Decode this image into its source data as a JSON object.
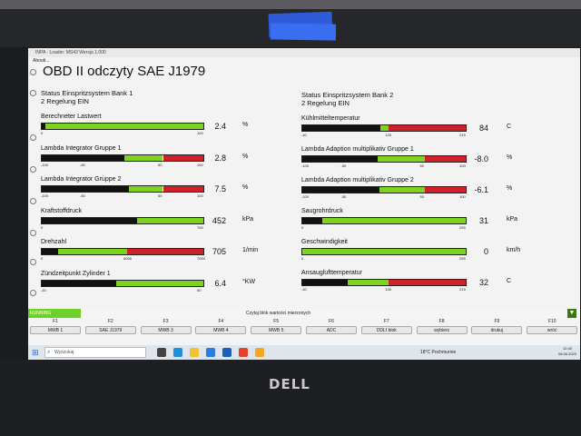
{
  "window": {
    "title": "INPA - Loader: MS43 Wersja 1.000",
    "menu": "Abouti..."
  },
  "app_title": "OBD II odczyty SAE J1979",
  "bank1": {
    "line1": "Status Einspritzsystem Bank 1",
    "line2": "2 Regelung EIN"
  },
  "bank2": {
    "line1": "Status Einspritzsystem Bank 2",
    "line2": "2 Regelung EIN"
  },
  "left_gauges": [
    {
      "label": "Berechneter Lastwert",
      "value": "2.4",
      "unit": "%",
      "ticks": [
        "0",
        "100"
      ],
      "fill": 0.02
    },
    {
      "label": "Lambda Integrator Gruppe 1",
      "value": "2.8",
      "unit": "%",
      "ticks": [
        "-100",
        "-50",
        "50",
        "100"
      ],
      "fill": 0.51
    },
    {
      "label": "Lambda Integrator Gruppe 2",
      "value": "7.5",
      "unit": "%",
      "ticks": [
        "-100",
        "-50",
        "50",
        "100"
      ],
      "fill": 0.54
    },
    {
      "label": "Kraftstoffdruck",
      "value": "452",
      "unit": "kPa",
      "ticks": [
        "0",
        "765"
      ],
      "fill": 0.59
    },
    {
      "label": "Drehzahl",
      "value": "705",
      "unit": "1/min",
      "ticks": [
        "0",
        "6000",
        "7000"
      ],
      "fill": 0.1
    },
    {
      "label": "Zündzeitpunkt Zylinder 1",
      "value": "6.4",
      "unit": "°KW",
      "ticks": [
        "-40",
        "60"
      ],
      "fill": 0.46
    }
  ],
  "right_gauges": [
    {
      "label": "Kühlmitteltemperatur",
      "value": "84",
      "unit": "C",
      "ticks": [
        "-40",
        "125",
        "215"
      ],
      "fill": 0.48
    },
    {
      "label": "Lambda Adaption multiplikativ Gruppe 1",
      "value": "-8.0",
      "unit": "%",
      "ticks": [
        "-100",
        "-50",
        "50",
        "100"
      ],
      "fill": 0.46
    },
    {
      "label": "Lambda Adaption multiplikativ Gruppe 2",
      "value": "-6.1",
      "unit": "%",
      "ticks": [
        "-100",
        "-50",
        "50",
        "100"
      ],
      "fill": 0.47
    },
    {
      "label": "Saugrohrdruck",
      "value": "31",
      "unit": "kPa",
      "ticks": [
        "0",
        "255"
      ],
      "fill": 0.12
    },
    {
      "label": "Geschwindigkeit",
      "value": "0",
      "unit": "km/h",
      "ticks": [
        "0",
        "255"
      ],
      "fill": 0.0
    },
    {
      "label": "Ansauglufttemperatur",
      "value": "32",
      "unit": "C",
      "ticks": [
        "-40",
        "105",
        "215"
      ],
      "fill": 0.28
    }
  ],
  "status": {
    "state": "RUNNING",
    "message": "Czytaj blok wartości mierzonych"
  },
  "fkeys": [
    {
      "key": "F1",
      "label": "MWB 1"
    },
    {
      "key": "F2",
      "label": "SAE J1979"
    },
    {
      "key": "F3",
      "label": "MWB 3"
    },
    {
      "key": "F4",
      "label": "MWB 4"
    },
    {
      "key": "F5",
      "label": "MWB 5"
    },
    {
      "key": "F6",
      "label": "ADC"
    },
    {
      "key": "F7",
      "label": "DDLI blok"
    },
    {
      "key": "F8",
      "label": "wybierz"
    },
    {
      "key": "F9",
      "label": "drukuj"
    },
    {
      "key": "F10",
      "label": "wróć"
    }
  ],
  "taskbar": {
    "search_placeholder": "Wyszukaj",
    "weather": "18°C Pochmurnie",
    "time": "12:40",
    "date": "08.06.2023"
  },
  "brand": "DELL",
  "colors": {
    "green": "#7ed321",
    "red": "#d0202a",
    "black": "#111111",
    "running": "#6fd02a"
  }
}
